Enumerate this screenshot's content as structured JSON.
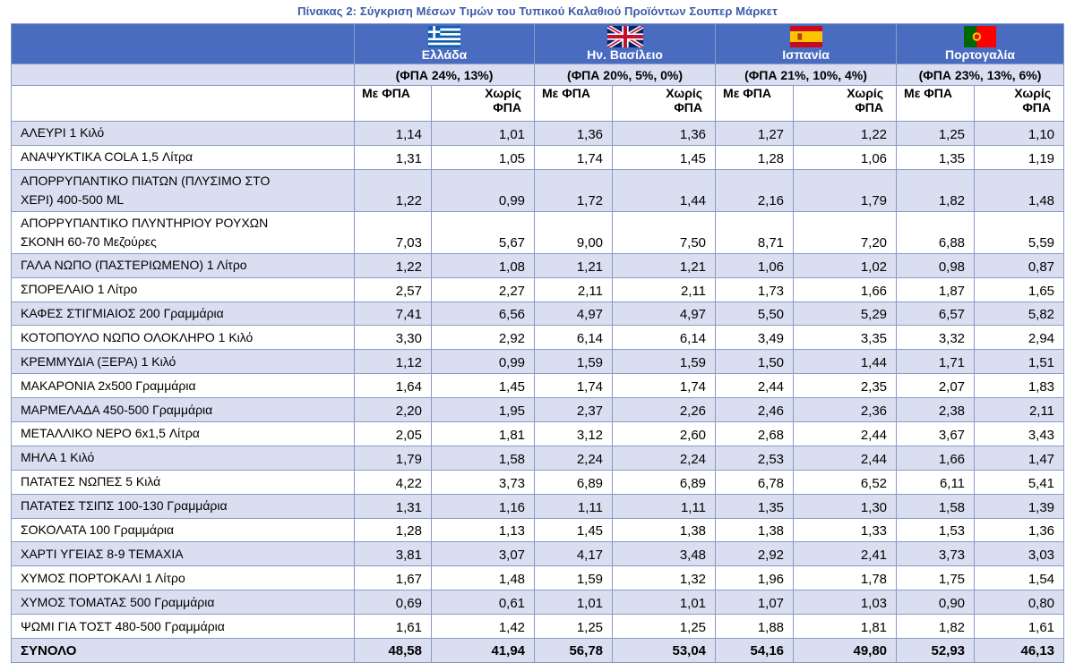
{
  "title": "Πίνακας 2: Σύγκριση Μέσων Τιμών του Τυπικού Καλαθιού Προϊόντων Σουπερ Μάρκετ",
  "countries": [
    {
      "name": "Ελλάδα",
      "vat": "(ΦΠΑ 24%, 13%)",
      "flag": "greece-flag-icon"
    },
    {
      "name": "Ην. Βασίλειο",
      "vat": "(ΦΠΑ 20%, 5%, 0%)",
      "flag": "uk-flag-icon"
    },
    {
      "name": "Ισπανία",
      "vat": "(ΦΠΑ 21%, 10%, 4%)",
      "flag": "spain-flag-icon"
    },
    {
      "name": "Πορτογαλία",
      "vat": "(ΦΠΑ 23%, 13%, 6%)",
      "flag": "portugal-flag-icon"
    }
  ],
  "subheaders": {
    "with_vat": "Με ΦΠΑ",
    "without_vat_line1": "Χωρίς",
    "without_vat_line2": "ΦΠΑ"
  },
  "colors": {
    "header_blue": "#4a6cc0",
    "row_tint": "#d9dff1",
    "title_blue": "#3a5ba8"
  },
  "rows": [
    {
      "line1": "ΑΛΕΥΡΙ 1 Κιλό",
      "line2": "",
      "v": [
        "1,14",
        "1,01",
        "1,36",
        "1,36",
        "1,27",
        "1,22",
        "1,25",
        "1,10"
      ]
    },
    {
      "line1": "ΑΝΑΨΥΚΤΙΚΑ COLA 1,5 Λίτρα",
      "line2": "",
      "v": [
        "1,31",
        "1,05",
        "1,74",
        "1,45",
        "1,28",
        "1,06",
        "1,35",
        "1,19"
      ]
    },
    {
      "line1": "ΑΠΟΡΡΥΠΑΝΤΙΚΟ ΠΙΑΤΩΝ (ΠΛΥΣΙΜΟ ΣΤΟ",
      "line2": "ΧΕΡΙ) 400-500 ML",
      "v": [
        "1,22",
        "0,99",
        "1,72",
        "1,44",
        "2,16",
        "1,79",
        "1,82",
        "1,48"
      ]
    },
    {
      "line1": "ΑΠΟΡΡΥΠΑΝΤΙΚΟ ΠΛΥΝΤΗΡΙΟΥ ΡΟΥΧΩΝ",
      "line2": "ΣΚΟΝΗ 60-70 Μεζούρες",
      "v": [
        "7,03",
        "5,67",
        "9,00",
        "7,50",
        "8,71",
        "7,20",
        "6,88",
        "5,59"
      ]
    },
    {
      "line1": "ΓΑΛΑ ΝΩΠΟ (ΠΑΣΤΕΡΙΩΜΕΝΟ) 1 Λίτρο",
      "line2": "",
      "v": [
        "1,22",
        "1,08",
        "1,21",
        "1,21",
        "1,06",
        "1,02",
        "0,98",
        "0,87"
      ]
    },
    {
      "line1": "ΣΠΟΡΕΛΑΙΟ 1 Λίτρο",
      "line2": "",
      "v": [
        "2,57",
        "2,27",
        "2,11",
        "2,11",
        "1,73",
        "1,66",
        "1,87",
        "1,65"
      ]
    },
    {
      "line1": "ΚΑΦΕΣ ΣΤΙΓΜΙΑΙΟΣ 200 Γραμμάρια",
      "line2": "",
      "v": [
        "7,41",
        "6,56",
        "4,97",
        "4,97",
        "5,50",
        "5,29",
        "6,57",
        "5,82"
      ]
    },
    {
      "line1": "ΚΟΤΟΠΟΥΛΟ ΝΩΠΟ ΟΛΟΚΛΗΡΟ 1 Κιλό",
      "line2": "",
      "v": [
        "3,30",
        "2,92",
        "6,14",
        "6,14",
        "3,49",
        "3,35",
        "3,32",
        "2,94"
      ]
    },
    {
      "line1": "ΚΡΕΜΜΥΔΙΑ (ΞΕΡΑ) 1 Κιλό",
      "line2": "",
      "v": [
        "1,12",
        "0,99",
        "1,59",
        "1,59",
        "1,50",
        "1,44",
        "1,71",
        "1,51"
      ]
    },
    {
      "line1": "ΜΑΚΑΡΟΝΙΑ 2x500 Γραμμάρια",
      "line2": "",
      "v": [
        "1,64",
        "1,45",
        "1,74",
        "1,74",
        "2,44",
        "2,35",
        "2,07",
        "1,83"
      ]
    },
    {
      "line1": "ΜΑΡΜΕΛΑΔΑ 450-500 Γραμμάρια",
      "line2": "",
      "v": [
        "2,20",
        "1,95",
        "2,37",
        "2,26",
        "2,46",
        "2,36",
        "2,38",
        "2,11"
      ]
    },
    {
      "line1": "ΜΕΤΑΛΛΙΚΟ ΝΕΡΟ 6x1,5 Λίτρα",
      "line2": "",
      "v": [
        "2,05",
        "1,81",
        "3,12",
        "2,60",
        "2,68",
        "2,44",
        "3,67",
        "3,43"
      ]
    },
    {
      "line1": "ΜΗΛΑ 1 Κιλό",
      "line2": "",
      "v": [
        "1,79",
        "1,58",
        "2,24",
        "2,24",
        "2,53",
        "2,44",
        "1,66",
        "1,47"
      ]
    },
    {
      "line1": "ΠΑΤΑΤΕΣ ΝΩΠΕΣ 5 Κιλά",
      "line2": "",
      "v": [
        "4,22",
        "3,73",
        "6,89",
        "6,89",
        "6,78",
        "6,52",
        "6,11",
        "5,41"
      ]
    },
    {
      "line1": "ΠΑΤΑΤΕΣ ΤΣΙΠΣ 100-130 Γραμμάρια",
      "line2": "",
      "v": [
        "1,31",
        "1,16",
        "1,11",
        "1,11",
        "1,35",
        "1,30",
        "1,58",
        "1,39"
      ]
    },
    {
      "line1": "ΣΟΚΟΛΑΤΑ 100 Γραμμάρια",
      "line2": "",
      "v": [
        "1,28",
        "1,13",
        "1,45",
        "1,38",
        "1,38",
        "1,33",
        "1,53",
        "1,36"
      ]
    },
    {
      "line1": "ΧΑΡΤΙ ΥΓΕΙΑΣ 8-9 ΤΕΜΑΧΙΑ",
      "line2": "",
      "v": [
        "3,81",
        "3,07",
        "4,17",
        "3,48",
        "2,92",
        "2,41",
        "3,73",
        "3,03"
      ]
    },
    {
      "line1": "ΧΥΜΟΣ ΠΟΡΤΟΚΑΛΙ 1 Λίτρο",
      "line2": "",
      "v": [
        "1,67",
        "1,48",
        "1,59",
        "1,32",
        "1,96",
        "1,78",
        "1,75",
        "1,54"
      ]
    },
    {
      "line1": "ΧΥΜΟΣ ΤΟΜΑΤΑΣ 500 Γραμμάρια",
      "line2": "",
      "v": [
        "0,69",
        "0,61",
        "1,01",
        "1,01",
        "1,07",
        "1,03",
        "0,90",
        "0,80"
      ]
    },
    {
      "line1": "ΨΩΜΙ ΓΙΑ ΤΟΣΤ 480-500 Γραμμάρια",
      "line2": "",
      "v": [
        "1,61",
        "1,42",
        "1,25",
        "1,25",
        "1,88",
        "1,81",
        "1,82",
        "1,61"
      ]
    }
  ],
  "total": {
    "label": "ΣΥΝΟΛΟ",
    "v": [
      "48,58",
      "41,94",
      "56,78",
      "53,04",
      "54,16",
      "49,80",
      "52,93",
      "46,13"
    ]
  }
}
